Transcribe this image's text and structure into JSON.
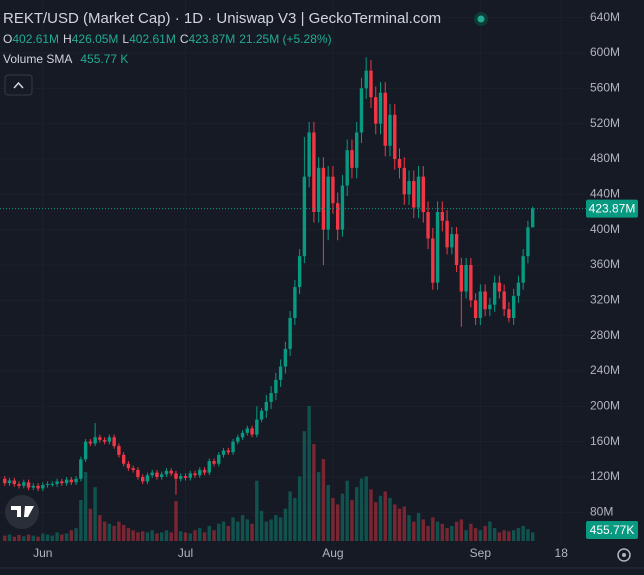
{
  "chart_data": {
    "type": "candlestick",
    "title": "REKT/USD (Market Cap) · 1D · Uniswap V3 | GeckoTerminal.com",
    "ohlc_legend": [
      {
        "key": "O",
        "value": "402.61M"
      },
      {
        "key": "H",
        "value": "426.05M"
      },
      {
        "key": "L",
        "value": "402.61M"
      },
      {
        "key": "C",
        "value": "423.87M"
      }
    ],
    "change": "21.25M (+5.28%)",
    "volume_legend": {
      "name": "Volume SMA",
      "value": "455.77 K"
    },
    "last_price_label": "423.87M",
    "volume_sma_label": "455.77K",
    "x": [
      0,
      1,
      2,
      3,
      4,
      5,
      6,
      7,
      8,
      9,
      10,
      11,
      12,
      13,
      14,
      15,
      16,
      17,
      18,
      19,
      20,
      21,
      22,
      23,
      24,
      25,
      26,
      27,
      28,
      29,
      30,
      31,
      32,
      33,
      34,
      35,
      36,
      37,
      38,
      39,
      40,
      41,
      42,
      43,
      44,
      45,
      46,
      47,
      48,
      49,
      50,
      51,
      52,
      53,
      54,
      55,
      56,
      57,
      58,
      59,
      60,
      61,
      62,
      63,
      64,
      65,
      66,
      67,
      68,
      69,
      70,
      71,
      72,
      73,
      74,
      75,
      76,
      77,
      78,
      79,
      80,
      81,
      82,
      83,
      84,
      85,
      86,
      87,
      88,
      89,
      90,
      91,
      92,
      93,
      94,
      95,
      96,
      97,
      98,
      99,
      100,
      101,
      102,
      103,
      104,
      105,
      106,
      107,
      108,
      109,
      110,
      111
    ],
    "open": [
      118,
      113,
      116,
      112,
      110,
      114,
      108,
      110,
      107,
      111,
      112,
      112,
      115,
      113,
      117,
      114,
      118,
      140,
      160,
      158,
      165,
      162,
      160,
      165,
      155,
      145,
      135,
      130,
      128,
      120,
      115,
      122,
      125,
      120,
      123,
      127,
      124,
      118,
      121,
      119,
      124,
      122,
      128,
      125,
      138,
      135,
      145,
      150,
      148,
      160,
      165,
      170,
      175,
      168,
      185,
      195,
      205,
      215,
      230,
      245,
      265,
      300,
      335,
      370,
      460,
      510,
      420,
      470,
      400,
      460,
      430,
      400,
      450,
      490,
      470,
      510,
      560,
      580,
      550,
      520,
      555,
      495,
      530,
      480,
      470,
      440,
      455,
      425,
      460,
      420,
      390,
      340,
      420,
      410,
      380,
      395,
      360,
      330,
      360,
      320,
      300,
      330,
      310,
      315,
      340,
      330,
      310,
      300,
      325,
      340,
      370,
      402.61
    ],
    "high": [
      121,
      119,
      119,
      115,
      117,
      117,
      113,
      113,
      114,
      115,
      115,
      118,
      118,
      120,
      120,
      121,
      143,
      163,
      163,
      181,
      168,
      165,
      168,
      168,
      158,
      148,
      138,
      133,
      131,
      123,
      125,
      128,
      128,
      126,
      130,
      130,
      127,
      124,
      124,
      127,
      127,
      131,
      131,
      141,
      141,
      148,
      153,
      153,
      163,
      168,
      173,
      178,
      178,
      200,
      198,
      213,
      223,
      238,
      253,
      273,
      308,
      343,
      378,
      505,
      522,
      522,
      482,
      482,
      472,
      472,
      442,
      462,
      502,
      502,
      522,
      572,
      595,
      592,
      562,
      567,
      567,
      542,
      542,
      492,
      482,
      467,
      467,
      472,
      472,
      432,
      402,
      432,
      432,
      422,
      403,
      403,
      368,
      368,
      368,
      328,
      338,
      338,
      323,
      348,
      348,
      338,
      318,
      333,
      348,
      378,
      410,
      426.05
    ],
    "low": [
      110,
      110,
      109,
      107,
      107,
      105,
      105,
      104,
      104,
      108,
      109,
      109,
      110,
      110,
      111,
      111,
      115,
      137,
      155,
      155,
      159,
      157,
      157,
      152,
      142,
      132,
      127,
      125,
      117,
      112,
      112,
      119,
      117,
      117,
      120,
      121,
      100,
      115,
      116,
      116,
      119,
      119,
      122,
      122,
      132,
      132,
      142,
      145,
      145,
      157,
      162,
      167,
      165,
      165,
      182,
      187,
      197,
      207,
      222,
      237,
      257,
      292,
      327,
      362,
      448,
      408,
      408,
      360,
      388,
      418,
      388,
      392,
      438,
      458,
      458,
      498,
      548,
      538,
      508,
      508,
      483,
      483,
      468,
      458,
      428,
      428,
      413,
      413,
      408,
      378,
      332,
      332,
      398,
      372,
      372,
      352,
      290,
      322,
      312,
      292,
      292,
      302,
      302,
      307,
      322,
      302,
      295,
      292,
      317,
      332,
      362,
      402.61
    ],
    "close": [
      113,
      116,
      112,
      110,
      114,
      108,
      110,
      107,
      111,
      112,
      112,
      115,
      113,
      117,
      114,
      118,
      140,
      160,
      158,
      165,
      162,
      160,
      165,
      155,
      145,
      135,
      130,
      128,
      120,
      115,
      122,
      125,
      120,
      123,
      127,
      124,
      118,
      121,
      119,
      124,
      122,
      128,
      125,
      138,
      135,
      145,
      150,
      148,
      160,
      165,
      170,
      175,
      168,
      185,
      195,
      205,
      215,
      230,
      245,
      265,
      300,
      335,
      370,
      460,
      510,
      420,
      470,
      400,
      460,
      430,
      400,
      450,
      490,
      470,
      510,
      560,
      580,
      550,
      520,
      555,
      495,
      530,
      480,
      470,
      440,
      455,
      425,
      460,
      420,
      390,
      340,
      420,
      410,
      380,
      395,
      360,
      330,
      360,
      320,
      300,
      330,
      310,
      315,
      340,
      330,
      310,
      300,
      325,
      340,
      370,
      402.61,
      423.87
    ],
    "volume": [
      250,
      300,
      200,
      280,
      220,
      300,
      250,
      200,
      350,
      300,
      250,
      400,
      300,
      350,
      500,
      600,
      1900,
      3200,
      1500,
      2500,
      1200,
      900,
      800,
      700,
      900,
      750,
      600,
      500,
      400,
      450,
      400,
      500,
      350,
      400,
      500,
      400,
      1850,
      450,
      400,
      350,
      500,
      600,
      400,
      700,
      500,
      800,
      900,
      700,
      1100,
      900,
      1200,
      1000,
      800,
      2800,
      1400,
      900,
      1000,
      1200,
      1100,
      1500,
      2300,
      2000,
      3000,
      5100,
      6270,
      4500,
      3200,
      3800,
      2600,
      2000,
      1700,
      2200,
      2800,
      1900,
      2500,
      2900,
      3000,
      2400,
      1800,
      2100,
      2300,
      2000,
      1700,
      1500,
      1600,
      1200,
      900,
      1300,
      1000,
      700,
      1100,
      900,
      800,
      600,
      700,
      900,
      1000,
      500,
      800,
      600,
      500,
      700,
      900,
      600,
      400,
      500,
      450,
      500,
      600,
      700,
      550,
      400
    ],
    "up_color": "#089981",
    "down_color": "#f23645",
    "xlim": [
      -1,
      122
    ],
    "xticks": [
      {
        "value": 8,
        "label": "Jun"
      },
      {
        "value": 38,
        "label": "Jul"
      },
      {
        "value": 69,
        "label": "Aug"
      },
      {
        "value": 100,
        "label": "Sep"
      },
      {
        "value": 117,
        "label": "18"
      }
    ],
    "ylim": [
      43,
      660
    ],
    "yticks": [
      {
        "value": 80,
        "label": "80M"
      },
      {
        "value": 120,
        "label": "120M"
      },
      {
        "value": 160,
        "label": "160M"
      },
      {
        "value": 200,
        "label": "200M"
      },
      {
        "value": 240,
        "label": "240M"
      },
      {
        "value": 280,
        "label": "280M"
      },
      {
        "value": 320,
        "label": "320M"
      },
      {
        "value": 360,
        "label": "360M"
      },
      {
        "value": 400,
        "label": "400M"
      },
      {
        "value": 440,
        "label": "440M"
      },
      {
        "value": 480,
        "label": "480M"
      },
      {
        "value": 520,
        "label": "520M"
      },
      {
        "value": 560,
        "label": "560M"
      },
      {
        "value": 600,
        "label": "600M"
      },
      {
        "value": 640,
        "label": "640M"
      }
    ],
    "volume_ylim": [
      0,
      6500
    ],
    "grid": true
  }
}
